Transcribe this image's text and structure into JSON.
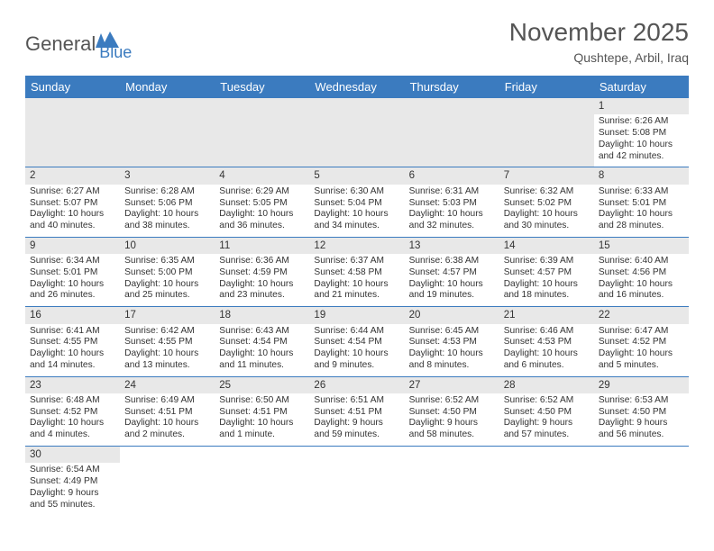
{
  "logo": {
    "part1": "General",
    "part2": "Blue"
  },
  "title": "November 2025",
  "location": "Qushtepe, Arbil, Iraq",
  "dayHeaders": [
    "Sunday",
    "Monday",
    "Tuesday",
    "Wednesday",
    "Thursday",
    "Friday",
    "Saturday"
  ],
  "colors": {
    "headerBg": "#3b7bbf",
    "headerText": "#ffffff",
    "dayNumBg": "#e8e8e8",
    "border": "#3b7bbf",
    "text": "#333333",
    "titleText": "#555555"
  },
  "weeks": [
    [
      null,
      null,
      null,
      null,
      null,
      null,
      {
        "n": "1",
        "sr": "Sunrise: 6:26 AM",
        "ss": "Sunset: 5:08 PM",
        "dl": "Daylight: 10 hours and 42 minutes."
      }
    ],
    [
      {
        "n": "2",
        "sr": "Sunrise: 6:27 AM",
        "ss": "Sunset: 5:07 PM",
        "dl": "Daylight: 10 hours and 40 minutes."
      },
      {
        "n": "3",
        "sr": "Sunrise: 6:28 AM",
        "ss": "Sunset: 5:06 PM",
        "dl": "Daylight: 10 hours and 38 minutes."
      },
      {
        "n": "4",
        "sr": "Sunrise: 6:29 AM",
        "ss": "Sunset: 5:05 PM",
        "dl": "Daylight: 10 hours and 36 minutes."
      },
      {
        "n": "5",
        "sr": "Sunrise: 6:30 AM",
        "ss": "Sunset: 5:04 PM",
        "dl": "Daylight: 10 hours and 34 minutes."
      },
      {
        "n": "6",
        "sr": "Sunrise: 6:31 AM",
        "ss": "Sunset: 5:03 PM",
        "dl": "Daylight: 10 hours and 32 minutes."
      },
      {
        "n": "7",
        "sr": "Sunrise: 6:32 AM",
        "ss": "Sunset: 5:02 PM",
        "dl": "Daylight: 10 hours and 30 minutes."
      },
      {
        "n": "8",
        "sr": "Sunrise: 6:33 AM",
        "ss": "Sunset: 5:01 PM",
        "dl": "Daylight: 10 hours and 28 minutes."
      }
    ],
    [
      {
        "n": "9",
        "sr": "Sunrise: 6:34 AM",
        "ss": "Sunset: 5:01 PM",
        "dl": "Daylight: 10 hours and 26 minutes."
      },
      {
        "n": "10",
        "sr": "Sunrise: 6:35 AM",
        "ss": "Sunset: 5:00 PM",
        "dl": "Daylight: 10 hours and 25 minutes."
      },
      {
        "n": "11",
        "sr": "Sunrise: 6:36 AM",
        "ss": "Sunset: 4:59 PM",
        "dl": "Daylight: 10 hours and 23 minutes."
      },
      {
        "n": "12",
        "sr": "Sunrise: 6:37 AM",
        "ss": "Sunset: 4:58 PM",
        "dl": "Daylight: 10 hours and 21 minutes."
      },
      {
        "n": "13",
        "sr": "Sunrise: 6:38 AM",
        "ss": "Sunset: 4:57 PM",
        "dl": "Daylight: 10 hours and 19 minutes."
      },
      {
        "n": "14",
        "sr": "Sunrise: 6:39 AM",
        "ss": "Sunset: 4:57 PM",
        "dl": "Daylight: 10 hours and 18 minutes."
      },
      {
        "n": "15",
        "sr": "Sunrise: 6:40 AM",
        "ss": "Sunset: 4:56 PM",
        "dl": "Daylight: 10 hours and 16 minutes."
      }
    ],
    [
      {
        "n": "16",
        "sr": "Sunrise: 6:41 AM",
        "ss": "Sunset: 4:55 PM",
        "dl": "Daylight: 10 hours and 14 minutes."
      },
      {
        "n": "17",
        "sr": "Sunrise: 6:42 AM",
        "ss": "Sunset: 4:55 PM",
        "dl": "Daylight: 10 hours and 13 minutes."
      },
      {
        "n": "18",
        "sr": "Sunrise: 6:43 AM",
        "ss": "Sunset: 4:54 PM",
        "dl": "Daylight: 10 hours and 11 minutes."
      },
      {
        "n": "19",
        "sr": "Sunrise: 6:44 AM",
        "ss": "Sunset: 4:54 PM",
        "dl": "Daylight: 10 hours and 9 minutes."
      },
      {
        "n": "20",
        "sr": "Sunrise: 6:45 AM",
        "ss": "Sunset: 4:53 PM",
        "dl": "Daylight: 10 hours and 8 minutes."
      },
      {
        "n": "21",
        "sr": "Sunrise: 6:46 AM",
        "ss": "Sunset: 4:53 PM",
        "dl": "Daylight: 10 hours and 6 minutes."
      },
      {
        "n": "22",
        "sr": "Sunrise: 6:47 AM",
        "ss": "Sunset: 4:52 PM",
        "dl": "Daylight: 10 hours and 5 minutes."
      }
    ],
    [
      {
        "n": "23",
        "sr": "Sunrise: 6:48 AM",
        "ss": "Sunset: 4:52 PM",
        "dl": "Daylight: 10 hours and 4 minutes."
      },
      {
        "n": "24",
        "sr": "Sunrise: 6:49 AM",
        "ss": "Sunset: 4:51 PM",
        "dl": "Daylight: 10 hours and 2 minutes."
      },
      {
        "n": "25",
        "sr": "Sunrise: 6:50 AM",
        "ss": "Sunset: 4:51 PM",
        "dl": "Daylight: 10 hours and 1 minute."
      },
      {
        "n": "26",
        "sr": "Sunrise: 6:51 AM",
        "ss": "Sunset: 4:51 PM",
        "dl": "Daylight: 9 hours and 59 minutes."
      },
      {
        "n": "27",
        "sr": "Sunrise: 6:52 AM",
        "ss": "Sunset: 4:50 PM",
        "dl": "Daylight: 9 hours and 58 minutes."
      },
      {
        "n": "28",
        "sr": "Sunrise: 6:52 AM",
        "ss": "Sunset: 4:50 PM",
        "dl": "Daylight: 9 hours and 57 minutes."
      },
      {
        "n": "29",
        "sr": "Sunrise: 6:53 AM",
        "ss": "Sunset: 4:50 PM",
        "dl": "Daylight: 9 hours and 56 minutes."
      }
    ],
    [
      {
        "n": "30",
        "sr": "Sunrise: 6:54 AM",
        "ss": "Sunset: 4:49 PM",
        "dl": "Daylight: 9 hours and 55 minutes."
      },
      null,
      null,
      null,
      null,
      null,
      null
    ]
  ]
}
